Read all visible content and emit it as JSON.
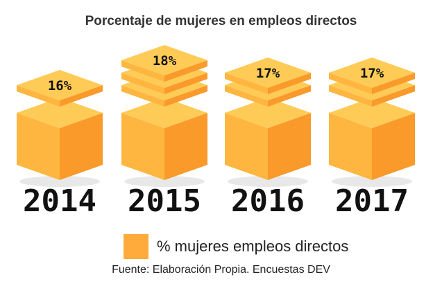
{
  "chart_data": {
    "type": "bar",
    "title": "Porcentaje de mujeres en empleos directos",
    "categories": [
      "2014",
      "2015",
      "2016",
      "2017"
    ],
    "series": [
      {
        "name": "% mujeres empleos directos",
        "values": [
          16,
          18,
          17,
          17
        ]
      }
    ],
    "data_labels": [
      "16%",
      "18%",
      "17%",
      "17%"
    ],
    "legend": "bottom",
    "grid": false
  },
  "source": "Fuente: Elaboración Propia. Encuestas DEV",
  "colors": {
    "top": "#FFCB57",
    "left": "#FFB640",
    "right": "#F99A2B",
    "legend": "#FFAB3C",
    "text": "#222222"
  }
}
